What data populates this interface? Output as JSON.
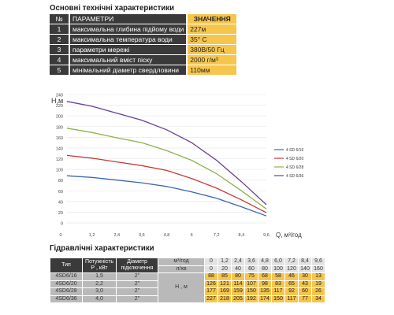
{
  "section1_title": "Основні технічні характеристики",
  "spec": {
    "head_num": "№",
    "head_param": "ПАРАМЕТРИ",
    "head_value": "ЗНАЧЕННЯ",
    "rows": [
      {
        "num": "1",
        "param": "максимальна глибина підйому води",
        "value": "227м"
      },
      {
        "num": "2",
        "param": "максимальна температура води",
        "value": "35° С"
      },
      {
        "num": "3",
        "param": "параметри мережі",
        "value": "380В/50 Гц"
      },
      {
        "num": "4",
        "param": "максимальний вміст піску",
        "value": "2000 г/м³"
      },
      {
        "num": "5",
        "param": "мінімальний діаметр свердловини",
        "value": "110мм"
      }
    ]
  },
  "chart_data": {
    "type": "line",
    "ylabel": "H,м",
    "xlabel": "Q, м³/год",
    "xlim": [
      0,
      9.6
    ],
    "ylim": [
      0,
      240
    ],
    "x_ticks": [
      "0",
      "1,2",
      "2,4",
      "3,6",
      "4,8",
      "6",
      "7,2",
      "8,4",
      "9,6"
    ],
    "y_ticks": [
      "0",
      "20",
      "40",
      "60",
      "80",
      "100",
      "120",
      "140",
      "160",
      "180",
      "200",
      "220",
      "240"
    ],
    "grid": "horizontal",
    "legend_position": "right",
    "x": [
      0,
      1.2,
      2.4,
      3.6,
      4.8,
      6.0,
      7.2,
      8.4,
      9.6
    ],
    "series": [
      {
        "name": "4 SD 6/16",
        "color": "#3a66b4",
        "values": [
          88,
          85,
          80,
          75,
          68,
          58,
          46,
          30,
          13
        ]
      },
      {
        "name": "4 SD 6/20",
        "color": "#c43b36",
        "values": [
          126,
          121,
          114,
          107,
          98,
          83,
          65,
          43,
          19
        ]
      },
      {
        "name": "4 SD 6/28",
        "color": "#8db24a",
        "values": [
          177,
          169,
          159,
          150,
          135,
          117,
          92,
          60,
          26
        ]
      },
      {
        "name": "4 SD 6/36",
        "color": "#6a3d9a",
        "values": [
          227,
          218,
          205,
          192,
          174,
          150,
          117,
          77,
          34
        ]
      }
    ]
  },
  "section2_title": "Гідравлічні характеристики",
  "hydraulic": {
    "col_type": "Тип",
    "col_power": "Потужність Р , кВт",
    "col_diam": "Діаметр підключення",
    "unit_m3": "м³/год",
    "unit_ls": "л/хв",
    "unit_h": "Н , м",
    "flow_m3": [
      "0",
      "1,2",
      "2,4",
      "3,6",
      "4,8",
      "6,0",
      "7,2",
      "8,4",
      "9,6"
    ],
    "flow_ls": [
      "0",
      "20",
      "40",
      "60",
      "80",
      "100",
      "120",
      "140",
      "160"
    ],
    "rows": [
      {
        "type": "4SD6/16",
        "power": "1,5",
        "diam": "2\"",
        "heads": [
          "88",
          "85",
          "80",
          "75",
          "68",
          "58",
          "46",
          "30",
          "13"
        ]
      },
      {
        "type": "4SD6/20",
        "power": "2,2",
        "diam": "2\"",
        "heads": [
          "126",
          "121",
          "114",
          "107",
          "98",
          "83",
          "65",
          "43",
          "19"
        ]
      },
      {
        "type": "4SD6/28",
        "power": "3,0",
        "diam": "2\"",
        "heads": [
          "177",
          "169",
          "159",
          "150",
          "135",
          "117",
          "92",
          "60",
          "26"
        ]
      },
      {
        "type": "4SD6/36",
        "power": "4,0",
        "diam": "2\"",
        "heads": [
          "227",
          "218",
          "205",
          "192",
          "174",
          "150",
          "117",
          "77",
          "34"
        ]
      }
    ]
  }
}
